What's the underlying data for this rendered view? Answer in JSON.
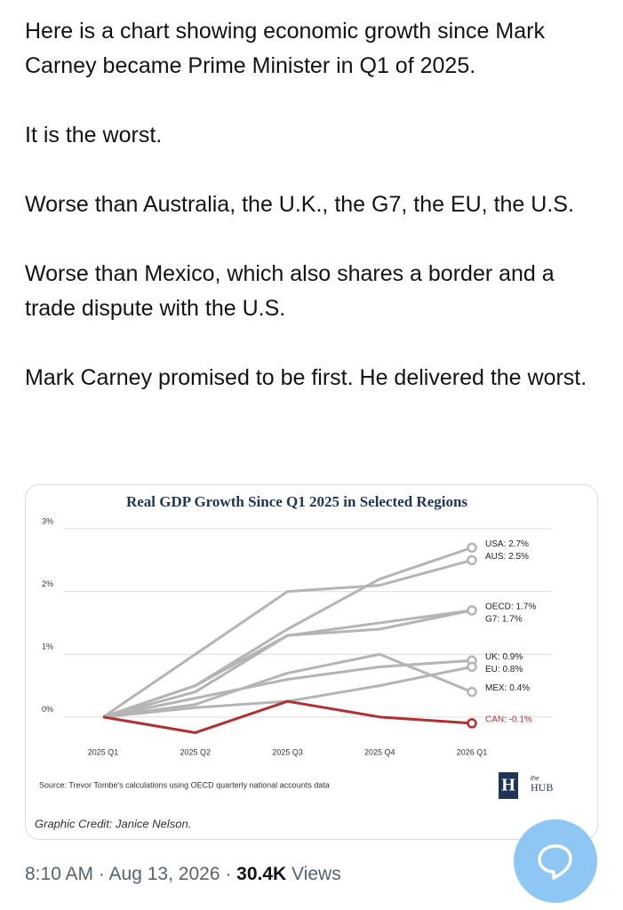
{
  "tweet": {
    "paragraphs": [
      "Here is a chart showing economic growth since Mark Carney became Prime Minister in Q1 of 2025.",
      "It is the worst.",
      "Worse than Australia, the U.K., the G7, the EU, the U.S.",
      "Worse than Mexico, which also shares a border and a trade dispute with the U.S.",
      "Mark Carney promised to be first. He delivered the worst."
    ],
    "time": "8:10 AM · Aug 13, 2026 · ",
    "views_count": "30.4K",
    "views_label": " Views"
  },
  "chart_data": {
    "type": "line",
    "title": "Real GDP Growth Since Q1 2025 in Selected Regions",
    "categories": [
      "2025 Q1",
      "2025 Q2",
      "2025 Q3",
      "2025 Q4",
      "2026 Q1"
    ],
    "ylim": [
      -0.3,
      3.1
    ],
    "yticks": [
      {
        "value": 0,
        "label": "0%"
      },
      {
        "value": 1,
        "label": "1%"
      },
      {
        "value": 2,
        "label": "2%"
      },
      {
        "value": 3,
        "label": "3%"
      }
    ],
    "grid": true,
    "series": [
      {
        "label": "USA: 2.7%",
        "color": "#b4b4b4",
        "values": [
          0,
          0.5,
          1.4,
          2.2,
          2.7
        ]
      },
      {
        "label": "AUS: 2.5%",
        "color": "#b4b4b4",
        "values": [
          0,
          1.0,
          2.0,
          2.1,
          2.5
        ]
      },
      {
        "label": "OECD: 1.7%",
        "color": "#b4b4b4",
        "values": [
          0,
          0.5,
          1.3,
          1.4,
          1.7
        ]
      },
      {
        "label": "G7: 1.7%",
        "color": "#b4b4b4",
        "values": [
          0,
          0.4,
          1.3,
          1.5,
          1.7
        ]
      },
      {
        "label": "UK: 0.9%",
        "color": "#b4b4b4",
        "values": [
          0,
          0.3,
          0.6,
          0.8,
          0.9
        ]
      },
      {
        "label": "EU: 0.8%",
        "color": "#b4b4b4",
        "values": [
          0,
          0.15,
          0.25,
          0.5,
          0.8
        ]
      },
      {
        "label": "MEX: 0.4%",
        "color": "#b4b4b4",
        "values": [
          0,
          0.2,
          0.7,
          1.0,
          0.4
        ]
      },
      {
        "label": "CAN: -0.1%",
        "color": "#b03030",
        "values": [
          0,
          -0.25,
          0.25,
          0.0,
          -0.1
        ]
      }
    ],
    "source": "Source: Trevor Tombe's calculations using OECD quarterly national accounts data",
    "credit": "Graphic Credit: Janice Nelson.",
    "logo": {
      "letter": "H",
      "small": "the",
      "name": "HUB"
    }
  }
}
